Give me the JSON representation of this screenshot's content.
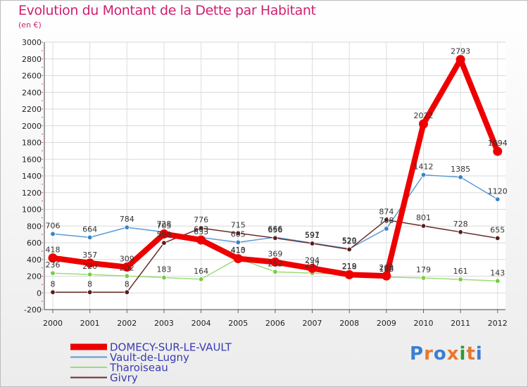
{
  "title": "Evolution du Montant de la Dette par Habitant",
  "subtitle": "(en €)",
  "logo": {
    "text": "Proxiti",
    "colors": [
      "#3a7fd0",
      "#e8782c",
      "#3a7fd0",
      "#e8782c",
      "#2a9a3a",
      "#e8782c",
      "#3a7fd0"
    ]
  },
  "chart_data": {
    "type": "line",
    "title": "Evolution du Montant de la Dette par Habitant",
    "ylabel": "(en €)",
    "xlabel": "",
    "ylim": [
      -200,
      3000
    ],
    "yticks": [
      -200,
      0,
      200,
      400,
      600,
      800,
      1000,
      1200,
      1400,
      1600,
      1800,
      2000,
      2200,
      2400,
      2600,
      2800,
      3000
    ],
    "grid": true,
    "categories": [
      "2000",
      "2001",
      "2002",
      "2003",
      "2004",
      "2005",
      "2006",
      "2007",
      "2008",
      "2009",
      "2010",
      "2011",
      "2012"
    ],
    "legend_position": "bottom-left",
    "series": [
      {
        "name": "Vault-de-Lugny",
        "color": "#5b9bd5",
        "point_color": "#3b82c4",
        "values": [
          706,
          664,
          784,
          728,
          663,
          605,
          666,
          597,
          529,
          768,
          1412,
          1385,
          1120
        ],
        "labels": [
          "706",
          "664",
          "784",
          "728",
          "663",
          "605",
          "666",
          "597",
          "529",
          "768",
          "1412",
          "1385",
          "1120"
        ]
      },
      {
        "name": "Tharoiseau",
        "color": "#99dd77",
        "point_color": "#77cc44",
        "values": [
          236,
          220,
          202,
          183,
          164,
          413,
          252,
          237,
          219,
          188,
          179,
          161,
          143
        ],
        "labels": [
          "236",
          "220",
          "202",
          "183",
          "164",
          "413",
          "252",
          "237",
          "219",
          "188",
          "179",
          "161",
          "143"
        ]
      },
      {
        "name": "Givry",
        "color": "#6b2c2c",
        "point_color": "#5a1c1c",
        "values": [
          8,
          8,
          8,
          598,
          776,
          715,
          656,
          591,
          520,
          874,
          801,
          728,
          655
        ],
        "labels": [
          "8",
          "8",
          "8",
          "598",
          "776",
          "715",
          "656",
          "591",
          "520",
          "874",
          "801",
          "728",
          "655"
        ]
      },
      {
        "name": "DOMECY-SUR-LE-VAULT",
        "color": "#ee0000",
        "point_color": "#ee0000",
        "values": [
          418,
          357,
          309,
          705,
          633,
          410,
          369,
          294,
          218,
          203,
          2022,
          2793,
          1694
        ],
        "labels": [
          "418",
          "357",
          "309",
          "705",
          "633",
          "410",
          "369",
          "294",
          "218",
          "203",
          "2022",
          "2793",
          "1694"
        ]
      }
    ],
    "legend": [
      "DOMECY-SUR-LE-VAULT",
      "Vault-de-Lugny",
      "Tharoiseau",
      "Givry"
    ]
  }
}
